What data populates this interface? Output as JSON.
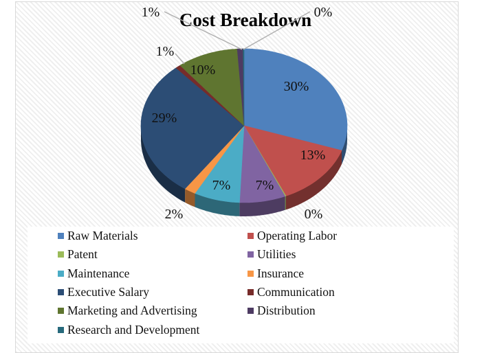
{
  "chart_data": {
    "type": "pie",
    "title": "Cost Breakdown",
    "style": "3d-pie",
    "legend_position": "bottom",
    "categories": [
      "Raw Materials",
      "Operating Labor",
      "Patent",
      "Utilities",
      "Maintenance",
      "Insurance",
      "Executive Salary",
      "Communication",
      "Marketing and Advertising",
      "Distribution",
      "Research and Development"
    ],
    "values": [
      30,
      13,
      0,
      7,
      7,
      2,
      29,
      1,
      10,
      1,
      0
    ],
    "data_labels": [
      "30%",
      "13%",
      "0%",
      "7%",
      "7%",
      "2%",
      "29%",
      "1%",
      "10%",
      "1%",
      "0%"
    ],
    "colors": [
      "#4f81bd",
      "#c0504d",
      "#9bbb59",
      "#8064a2",
      "#4bacc6",
      "#f79646",
      "#2c4d75",
      "#772c2a",
      "#5f7530",
      "#4d3b62",
      "#276a7c"
    ]
  },
  "title": "Cost Breakdown",
  "legend": [
    {
      "label": "Raw Materials",
      "color": "#4f81bd"
    },
    {
      "label": "Operating Labor",
      "color": "#c0504d"
    },
    {
      "label": "Patent",
      "color": "#9bbb59"
    },
    {
      "label": "Utilities",
      "color": "#8064a2"
    },
    {
      "label": "Maintenance",
      "color": "#4bacc6"
    },
    {
      "label": "Insurance",
      "color": "#f79646"
    },
    {
      "label": "Executive Salary",
      "color": "#2c4d75"
    },
    {
      "label": "Communication",
      "color": "#772c2a"
    },
    {
      "label": "Marketing and Advertising",
      "color": "#5f7530"
    },
    {
      "label": "Distribution",
      "color": "#4d3b62"
    },
    {
      "label": "Research and Development",
      "color": "#276a7c"
    }
  ]
}
